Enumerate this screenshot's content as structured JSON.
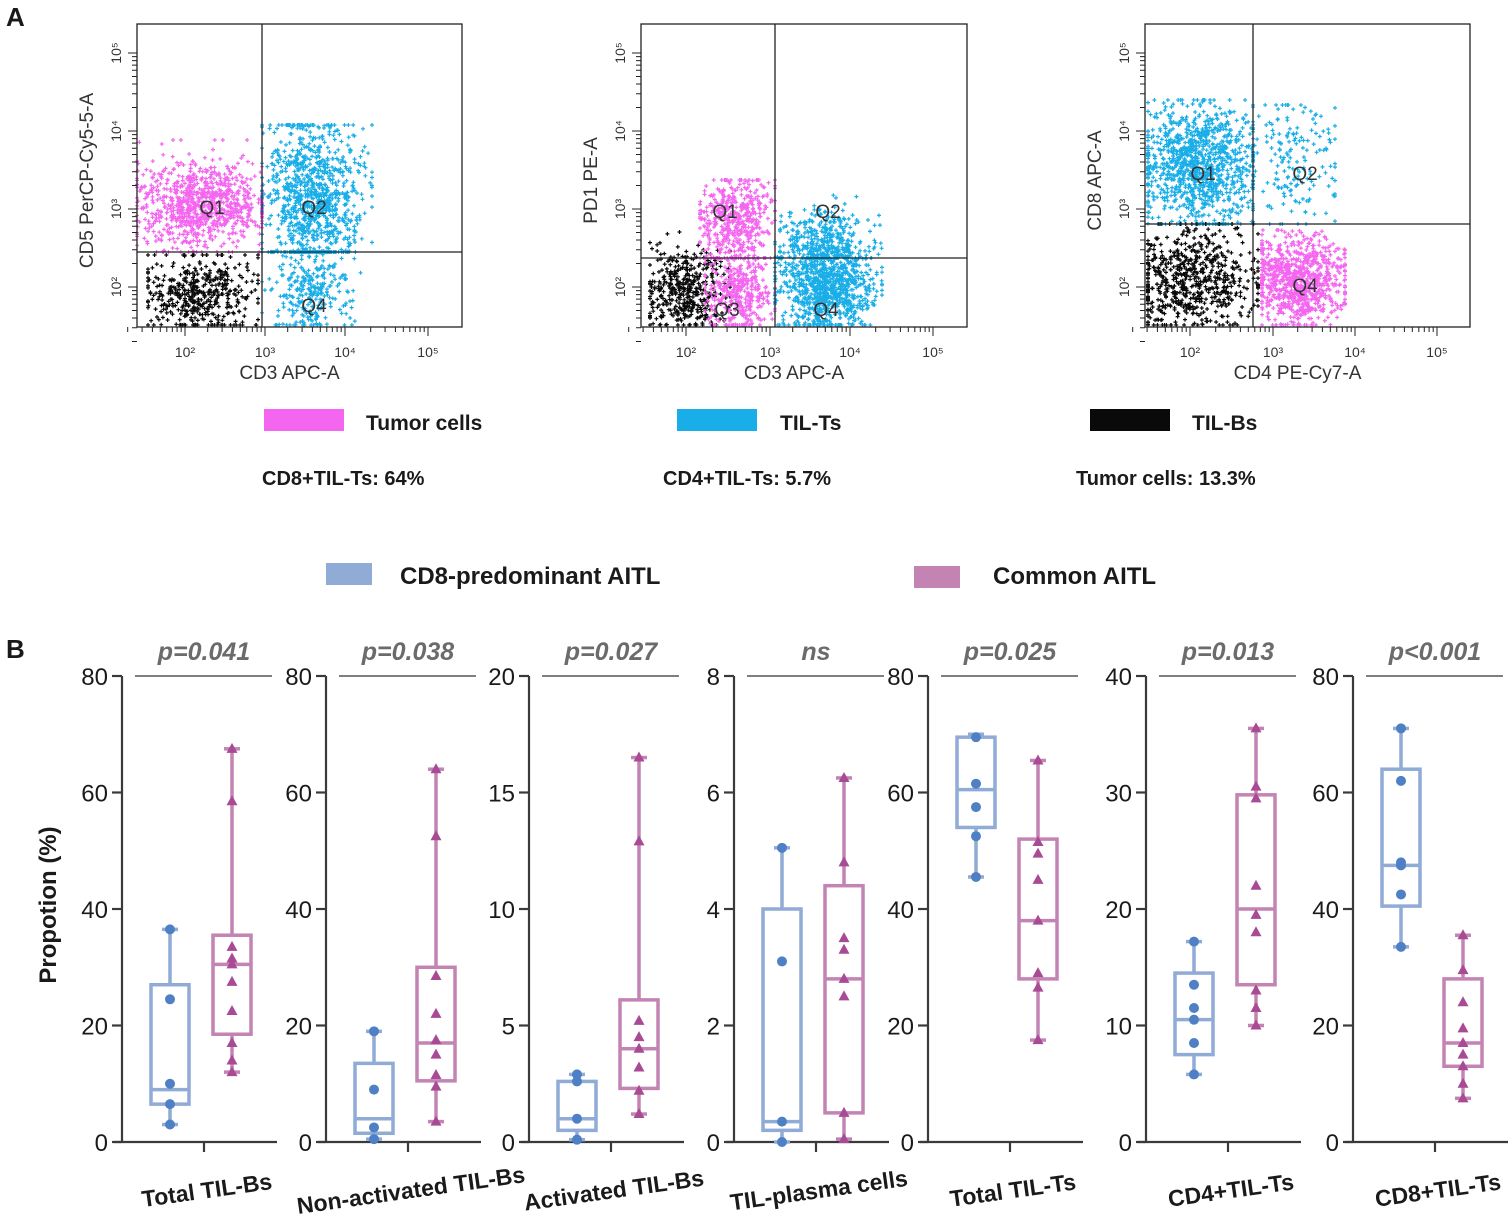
{
  "panel_labels": {
    "a": "A",
    "b": "B"
  },
  "flow_plots": [
    {
      "y_label": "CD5 PerCP-Cy5-5-A",
      "x_label": "CD3 APC-A",
      "quadrants": {
        "q1": "Q1",
        "q2": "Q2",
        "q3": "",
        "q4": "Q4"
      }
    },
    {
      "y_label": "PD1 PE-A",
      "x_label": "CD3 APC-A",
      "quadrants": {
        "q1": "Q1",
        "q2": "Q2",
        "q3": "Q3",
        "q4": "Q4"
      }
    },
    {
      "y_label": "CD8 APC-A",
      "x_label": "CD4 PE-Cy7-A",
      "quadrants": {
        "q1": "Q1",
        "q2": "Q2",
        "q3": "",
        "q4": "Q4"
      }
    }
  ],
  "flow_ticks": {
    "x": [
      "10²",
      "10³",
      "10⁴",
      "10⁵"
    ],
    "y": [
      "10²",
      "10³",
      "10⁴",
      "10⁵"
    ]
  },
  "flow_legend": [
    {
      "label": "Tumor cells",
      "color": "#f466f0"
    },
    {
      "label": "TIL-Ts",
      "color": "#1aaee8"
    },
    {
      "label": "TIL-Bs",
      "color": "#0a0a0a"
    }
  ],
  "flow_stats": [
    "CD8+TIL-Ts: 64%",
    "CD4+TIL-Ts: 5.7%",
    "Tumor cells: 13.3%"
  ],
  "box_legend": [
    {
      "label": "CD8-predominant AITL",
      "color": "#8fabd6"
    },
    {
      "label": "Common AITL",
      "color": "#c384b4"
    }
  ],
  "chart_data": [
    {
      "type": "box",
      "category": "Total TIL-Bs",
      "p": "p=0.041",
      "ylim": [
        0,
        80
      ],
      "ticks": [
        0,
        20,
        40,
        60,
        80
      ],
      "ylabel": "Propotion (%)",
      "series": [
        {
          "name": "CD8-predominant AITL",
          "min": 3,
          "q1": 6.5,
          "median": 9,
          "q3": 27,
          "max": 36.5,
          "points": [
            3,
            6.5,
            10,
            24.5,
            36.5
          ]
        },
        {
          "name": "Common AITL",
          "min": 12,
          "q1": 18.5,
          "median": 30.5,
          "q3": 35.5,
          "max": 67.5,
          "points": [
            12,
            14,
            17,
            22.5,
            27.5,
            30.5,
            31.5,
            33.5,
            58.5,
            67.5
          ]
        }
      ]
    },
    {
      "type": "box",
      "category": "Non-activated TIL-Bs",
      "p": "p=0.038",
      "ylim": [
        0,
        80
      ],
      "ticks": [
        0,
        20,
        40,
        60,
        80
      ],
      "ylabel": "",
      "series": [
        {
          "name": "CD8-predominant AITL",
          "min": 0.5,
          "q1": 1.5,
          "median": 4,
          "q3": 13.5,
          "max": 19,
          "points": [
            0.5,
            2.5,
            9,
            19
          ]
        },
        {
          "name": "Common AITL",
          "min": 3.5,
          "q1": 10.5,
          "median": 17,
          "q3": 30,
          "max": 64,
          "points": [
            3.5,
            9.5,
            11.5,
            15,
            17.5,
            22,
            28.5,
            52.5,
            64
          ]
        }
      ]
    },
    {
      "type": "box",
      "category": "Activated TIL-Bs",
      "p": "p=0.027",
      "ylim": [
        0,
        20
      ],
      "ticks": [
        0,
        5,
        10,
        15,
        20
      ],
      "ylabel": "",
      "series": [
        {
          "name": "CD8-predominant AITL",
          "min": 0.1,
          "q1": 0.5,
          "median": 1,
          "q3": 2.6,
          "max": 2.9,
          "points": [
            0.1,
            1,
            2.6,
            2.9
          ]
        },
        {
          "name": "Common AITL",
          "min": 1.2,
          "q1": 2.3,
          "median": 4,
          "q3": 6.1,
          "max": 16.5,
          "points": [
            1.2,
            2.2,
            3.2,
            4,
            4.5,
            5.2,
            12.9,
            16.5
          ]
        }
      ]
    },
    {
      "type": "box",
      "category": "TIL-plasma cells",
      "p": "ns",
      "ylim": [
        0,
        8
      ],
      "ticks": [
        0,
        2,
        4,
        6,
        8
      ],
      "ylabel": "",
      "series": [
        {
          "name": "CD8-predominant AITL",
          "min": 0,
          "q1": 0.2,
          "median": 0.35,
          "q3": 4,
          "max": 5.05,
          "points": [
            0,
            0.35,
            3.1,
            5.05
          ]
        },
        {
          "name": "Common AITL",
          "min": 0.05,
          "q1": 0.5,
          "median": 2.8,
          "q3": 4.4,
          "max": 6.25,
          "points": [
            0.05,
            0.5,
            2.5,
            2.8,
            3.3,
            3.5,
            4.8,
            6.25
          ]
        }
      ]
    },
    {
      "type": "box",
      "category": "Total TIL-Ts",
      "p": "p=0.025",
      "ylim": [
        0,
        80
      ],
      "ticks": [
        0,
        20,
        40,
        60,
        80
      ],
      "ylabel": "",
      "series": [
        {
          "name": "CD8-predominant AITL",
          "min": 45.5,
          "q1": 54,
          "median": 60.5,
          "q3": 69.5,
          "max": 70,
          "points": [
            45.5,
            52.5,
            57.5,
            61.5,
            69.5
          ]
        },
        {
          "name": "Common AITL",
          "min": 17.5,
          "q1": 28,
          "median": 38,
          "q3": 52,
          "max": 65.5,
          "points": [
            17.5,
            26.5,
            29,
            38,
            45,
            49.5,
            51.5,
            65.5
          ]
        }
      ]
    },
    {
      "type": "box",
      "category": "CD4+TIL-Ts",
      "p": "p=0.013",
      "ylim": [
        0,
        40
      ],
      "ticks": [
        0,
        10,
        20,
        30,
        40
      ],
      "ylabel": "",
      "series": [
        {
          "name": "CD8-predominant AITL",
          "min": 5.8,
          "q1": 7.5,
          "median": 10.5,
          "q3": 14.5,
          "max": 17.2,
          "points": [
            5.8,
            8.5,
            10.5,
            11.5,
            13.5,
            17.2
          ]
        },
        {
          "name": "Common AITL",
          "min": 10,
          "q1": 13.5,
          "median": 20,
          "q3": 29.8,
          "max": 35.5,
          "points": [
            10,
            11.5,
            13,
            18,
            19.5,
            22,
            29.5,
            30.5,
            35.5
          ]
        }
      ]
    },
    {
      "type": "box",
      "category": "CD8+TIL-Ts",
      "p": "p<0.001",
      "ylim": [
        0,
        80
      ],
      "ticks": [
        0,
        20,
        40,
        60,
        80
      ],
      "ylabel": "",
      "series": [
        {
          "name": "CD8-predominant AITL",
          "min": 33.5,
          "q1": 40.5,
          "median": 47.5,
          "q3": 64,
          "max": 71,
          "points": [
            33.5,
            42.5,
            47.5,
            48,
            62,
            71
          ]
        },
        {
          "name": "Common AITL",
          "min": 7.5,
          "q1": 13,
          "median": 17,
          "q3": 28,
          "max": 35.5,
          "points": [
            7.5,
            10,
            13,
            15,
            17,
            19.5,
            24,
            29.5,
            35.5
          ]
        }
      ]
    }
  ]
}
